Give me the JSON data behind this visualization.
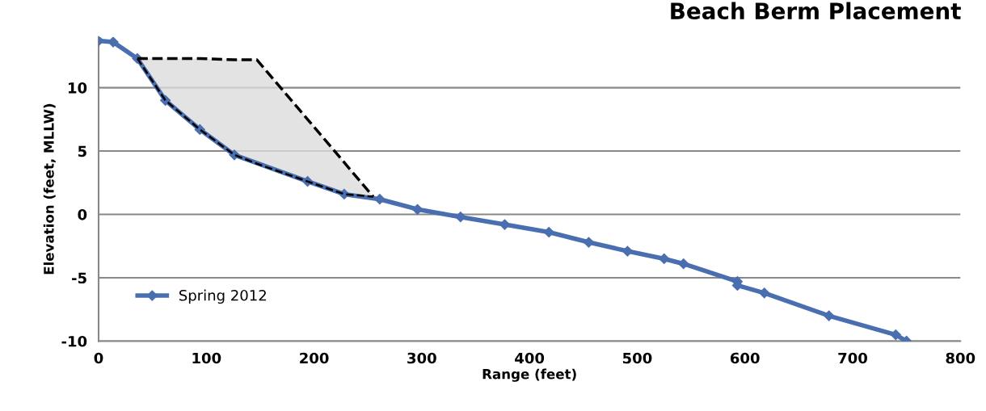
{
  "chart_data": {
    "type": "line",
    "title": "Beach Berm Placement",
    "xlabel": "Range (feet)",
    "ylabel": "Elevation (feet, MLLW)",
    "xlim": [
      0,
      800
    ],
    "xticks": [
      0,
      100,
      200,
      300,
      400,
      500,
      600,
      700,
      800
    ],
    "ylim": [
      -10,
      14
    ],
    "yticks": [
      -10,
      -5,
      0,
      5,
      10
    ],
    "grid": "y",
    "legend": "bottom left",
    "series": [
      {
        "name": "Spring 2012",
        "color": "#4a6fb0",
        "marker": "diamond",
        "line_style": "solid",
        "x": [
          0,
          13.5,
          36,
          62,
          94,
          126,
          194,
          228,
          261,
          296,
          336,
          377,
          418,
          455,
          491,
          525,
          543,
          593,
          593,
          618,
          678,
          740,
          750
        ],
        "values": [
          13.7,
          13.6,
          12.3,
          9.0,
          6.7,
          4.7,
          2.6,
          1.6,
          1.2,
          0.4,
          -0.2,
          -0.8,
          -1.4,
          -2.2,
          -2.9,
          -3.5,
          -3.9,
          -5.3,
          -5.6,
          -6.2,
          -8.0,
          -9.5,
          -10.0
        ]
      },
      {
        "color": "#000000",
        "marker": "none",
        "line_style": "dashed",
        "x": [
          36,
          62,
          94,
          126,
          147,
          194,
          228,
          255
        ],
        "values": [
          12.3,
          12.3,
          12.3,
          12.2,
          12.2,
          7.5,
          4.1,
          1.4
        ],
        "lower": [
          12.3,
          9.0,
          6.7,
          4.7,
          4.0,
          2.6,
          1.6,
          1.4
        ],
        "upper": [
          12.3,
          12.3,
          12.3,
          12.2,
          12.2,
          7.5,
          4.1,
          1.4
        ]
      }
    ]
  }
}
